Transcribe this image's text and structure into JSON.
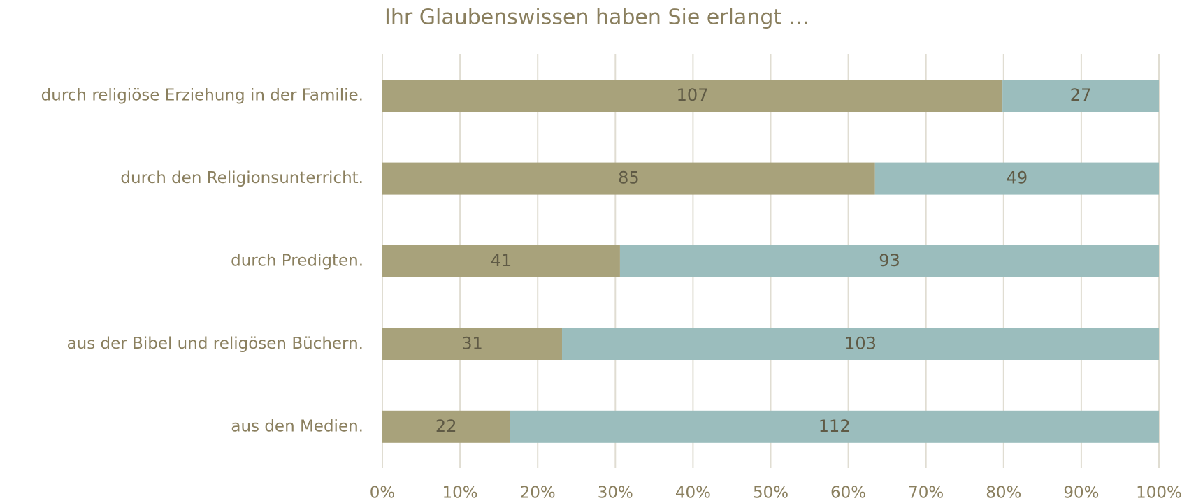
{
  "chart_data": {
    "type": "bar",
    "orientation": "horizontal",
    "stack": "percent",
    "title": "Ihr Glaubenswissen haben Sie erlangt …",
    "categories": [
      "durch religiöse Erziehung in der Familie.",
      "durch den Religionsunterricht.",
      "durch Predigten.",
      "aus der Bibel und religösen Büchern.",
      "aus den Medien."
    ],
    "series": [
      {
        "color": "#a8a27b",
        "values": [
          107,
          85,
          41,
          31,
          22
        ]
      },
      {
        "color": "#9bbdbd",
        "values": [
          27,
          49,
          93,
          103,
          112
        ]
      }
    ],
    "xlim": [
      0,
      100
    ],
    "xticks": [
      {
        "value": 0,
        "label": "0%"
      },
      {
        "value": 10,
        "label": "10%"
      },
      {
        "value": 20,
        "label": "20%"
      },
      {
        "value": 30,
        "label": "30%"
      },
      {
        "value": 40,
        "label": "40%"
      },
      {
        "value": 50,
        "label": "50%"
      },
      {
        "value": 60,
        "label": "60%"
      },
      {
        "value": 70,
        "label": "70%"
      },
      {
        "value": 80,
        "label": "80%"
      },
      {
        "value": 90,
        "label": "90%"
      },
      {
        "value": 100,
        "label": "100%"
      }
    ],
    "grid": true
  }
}
